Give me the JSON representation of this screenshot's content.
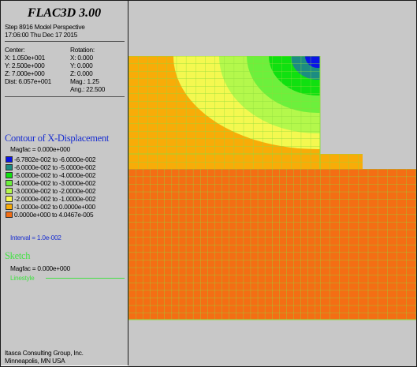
{
  "header": {
    "app_title": "FLAC3D 3.00",
    "step_line": "Step 8916  Model Perspective",
    "time_line": "17:06:00 Thu Dec 17 2015"
  },
  "view": {
    "center_label": "Center:",
    "center": [
      "X: 1.050e+001",
      "Y: 2.500e+000",
      "Z: 7.000e+000"
    ],
    "rotation_label": "Rotation:",
    "rotation": [
      "X:   0.000",
      "Y:   0.000",
      "Z:   0.000"
    ],
    "dist": "Dist: 6.057e+001",
    "mag": "Mag.:    1.25",
    "ang": "Ang.:  22.500"
  },
  "contour": {
    "title": "Contour of X-Displacement",
    "magfac": "Magfac =  0.000e+000",
    "interval": "Interval = 1.0e-002",
    "levels": [
      {
        "label": "-6.7802e-002 to -6.0000e-002",
        "color": "#0a14e6"
      },
      {
        "label": "-6.0000e-002 to -5.0000e-002",
        "color": "#1c8c82"
      },
      {
        "label": "-5.0000e-002 to -4.0000e-002",
        "color": "#10e010"
      },
      {
        "label": "-4.0000e-002 to -3.0000e-002",
        "color": "#6cf03c"
      },
      {
        "label": "-3.0000e-002 to -2.0000e-002",
        "color": "#b4f84c"
      },
      {
        "label": "-2.0000e-002 to -1.0000e-002",
        "color": "#f4f850"
      },
      {
        "label": "-1.0000e-002 to  0.0000e+000",
        "color": "#f8ac08"
      },
      {
        "label": " 0.0000e+000 to  4.0467e-005",
        "color": "#f46e14"
      }
    ]
  },
  "sketch": {
    "title": "Sketch",
    "magfac": "Magfac =  0.000e+000",
    "linestyle": "Linestyle"
  },
  "footer": {
    "company": "Itasca Consulting Group, Inc.",
    "location": "Minneapolis, MN  USA"
  },
  "colors": {
    "panel_bg": "#c8c8c8",
    "mesh_line": "#8cdc3c"
  }
}
